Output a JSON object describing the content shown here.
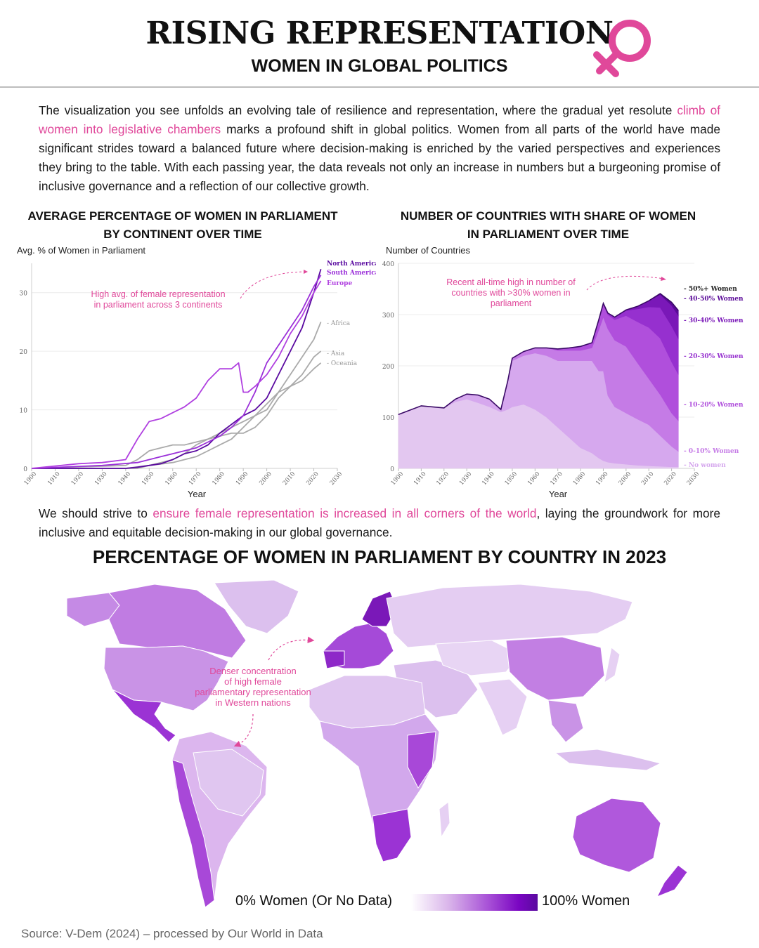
{
  "header": {
    "title": "RISING REPRESENTATION",
    "subtitle": "WOMEN IN GLOBAL POLITICS",
    "accent_color": "#e0489a"
  },
  "intro": {
    "part1": "The visualization you see unfolds an evolving tale of resilience and representation, where the gradual yet resolute ",
    "highlight": "climb of women into legislative chambers",
    "part2": " marks a profound shift in global politics. Women from all parts of the world have made significant strides toward a balanced future where decision-making is enriched by the varied perspectives and experiences they bring to the table. With each passing year, the data reveals not only an increase in numbers but a burgeoning promise of inclusive governance and a reflection of our collective growth."
  },
  "outro": {
    "part1": "We should strive to ",
    "highlight": "ensure female representation is increased in all corners of the world",
    "part2": ", laying the groundwork for more inclusive and equitable decision-making in our global governance."
  },
  "map": {
    "title": "PERCENTAGE OF WOMEN IN PARLIAMENT BY COUNTRY IN 2023",
    "annotation": [
      "Denser concentration",
      "of high female",
      "parliamentary representation",
      "in Western nations"
    ],
    "legend_low": "0% Women (Or No Data)",
    "legend_high": "100% Women"
  },
  "source": "Source: V-Dem (2024) – processed by Our World in Data",
  "chart_data": [
    {
      "type": "line",
      "title": "AVERAGE PERCENTAGE OF WOMEN IN PARLIAMENT BY CONTINENT OVER TIME",
      "ylabel": "Avg. % of Women in Parliament",
      "xlabel": "Year",
      "xlim": [
        1900,
        2030
      ],
      "ylim": [
        0,
        35
      ],
      "xticks": [
        "1900",
        "1910",
        "1920",
        "1930",
        "1940",
        "1950",
        "1960",
        "1970",
        "1980",
        "1990",
        "2000",
        "2010",
        "2020",
        "2030"
      ],
      "yticks": [
        "0",
        "10",
        "20",
        "30"
      ],
      "annotation": [
        "High avg. of female representation",
        "in parliament across 3 continents"
      ],
      "series": [
        {
          "name": "North America",
          "color": "#5a0aa0",
          "x": [
            1900,
            1940,
            1945,
            1950,
            1955,
            1960,
            1965,
            1970,
            1975,
            1980,
            1985,
            1990,
            1995,
            2000,
            2005,
            2010,
            2015,
            2020,
            2023
          ],
          "y": [
            0,
            0,
            0.2,
            0.5,
            0.8,
            1.5,
            2.5,
            3,
            4,
            6,
            7.5,
            9,
            10,
            12,
            16,
            20,
            24,
            30,
            34
          ]
        },
        {
          "name": "South America",
          "color": "#9b30d9",
          "x": [
            1900,
            1930,
            1945,
            1950,
            1955,
            1960,
            1965,
            1970,
            1975,
            1980,
            1985,
            1990,
            1995,
            2000,
            2005,
            2010,
            2015,
            2020,
            2023
          ],
          "y": [
            0,
            0.5,
            1,
            1.5,
            2,
            2.5,
            3,
            3.5,
            4.5,
            5.5,
            7,
            9,
            13,
            18,
            21,
            24,
            27,
            31,
            33
          ]
        },
        {
          "name": "Europe",
          "color": "#b040e0",
          "x": [
            1900,
            1920,
            1930,
            1940,
            1945,
            1950,
            1955,
            1960,
            1965,
            1970,
            1975,
            1980,
            1985,
            1988,
            1990,
            1992,
            1995,
            2000,
            2005,
            2010,
            2015,
            2020,
            2023
          ],
          "y": [
            0,
            0.8,
            1,
            1.5,
            5,
            8,
            8.5,
            9.5,
            10.5,
            12,
            15,
            17,
            17,
            18,
            13,
            13,
            14,
            16,
            19,
            23,
            26,
            30,
            32
          ]
        },
        {
          "name": "Africa",
          "color": "#aaaaaa",
          "x": [
            1900,
            1940,
            1950,
            1955,
            1960,
            1965,
            1970,
            1975,
            1980,
            1985,
            1990,
            1995,
            2000,
            2005,
            2010,
            2015,
            2020,
            2023
          ],
          "y": [
            0,
            0,
            0.5,
            1,
            1.5,
            2.5,
            4,
            5,
            6,
            7,
            8,
            9,
            10,
            13,
            16,
            19,
            22,
            25
          ]
        },
        {
          "name": "Asia",
          "color": "#aaaaaa",
          "x": [
            1900,
            1940,
            1945,
            1950,
            1955,
            1960,
            1965,
            1970,
            1975,
            1980,
            1985,
            1990,
            1995,
            2000,
            2005,
            2010,
            2015,
            2020,
            2023
          ],
          "y": [
            0,
            0.5,
            1.5,
            3,
            3.5,
            4,
            4,
            4.5,
            5,
            5.5,
            6,
            6,
            7,
            9,
            12,
            14,
            16,
            19,
            20
          ]
        },
        {
          "name": "Oceania",
          "color": "#aaaaaa",
          "x": [
            1900,
            1945,
            1950,
            1960,
            1965,
            1970,
            1975,
            1980,
            1985,
            1990,
            1995,
            2000,
            2005,
            2010,
            2015,
            2020,
            2023
          ],
          "y": [
            0,
            0,
            0.5,
            1,
            1.5,
            2,
            3,
            4,
            5,
            7,
            9,
            11,
            13,
            14,
            15,
            17,
            18
          ]
        }
      ]
    },
    {
      "type": "area",
      "title": "NUMBER OF COUNTRIES WITH SHARE OF WOMEN IN PARLIAMENT OVER TIME",
      "ylabel": "Number of Countries",
      "xlabel": "Year",
      "xlim": [
        1900,
        2030
      ],
      "ylim": [
        0,
        400
      ],
      "xticks": [
        "1900",
        "1910",
        "1920",
        "1930",
        "1940",
        "1950",
        "1960",
        "1970",
        "1980",
        "1990",
        "2000",
        "2010",
        "2020",
        "2030"
      ],
      "yticks": [
        "0",
        "100",
        "200",
        "300",
        "400"
      ],
      "annotation": [
        "Recent all-time high in number of",
        "countries with >30% women in",
        "parliament"
      ],
      "x": [
        1900,
        1910,
        1920,
        1925,
        1930,
        1935,
        1940,
        1945,
        1948,
        1950,
        1955,
        1960,
        1965,
        1970,
        1975,
        1980,
        1985,
        1988,
        1990,
        1992,
        1995,
        2000,
        2005,
        2010,
        2015,
        2020,
        2023
      ],
      "series": [
        {
          "name": "No women",
          "color": "#e3c7f0",
          "values": [
            105,
            122,
            118,
            130,
            135,
            128,
            120,
            110,
            115,
            120,
            125,
            115,
            100,
            80,
            60,
            40,
            30,
            20,
            15,
            12,
            10,
            8,
            6,
            5,
            4,
            3,
            3
          ]
        },
        {
          "name": "0-10% Women",
          "color": "#d6a8ee",
          "values": [
            0,
            0,
            0,
            5,
            10,
            15,
            15,
            5,
            55,
            90,
            95,
            110,
            120,
            130,
            150,
            170,
            180,
            170,
            175,
            130,
            110,
            100,
            90,
            80,
            60,
            40,
            30
          ]
        },
        {
          "name": "10-20% Women",
          "color": "#c57be6",
          "values": [
            0,
            0,
            0,
            0,
            0,
            0,
            0,
            0,
            0,
            5,
            8,
            10,
            15,
            20,
            20,
            20,
            25,
            80,
            105,
            130,
            130,
            130,
            110,
            90,
            80,
            65,
            60
          ]
        },
        {
          "name": "20-30% Women",
          "color": "#b04fdc",
          "values": [
            0,
            0,
            0,
            0,
            0,
            0,
            0,
            0,
            0,
            0,
            0,
            0,
            0,
            3,
            5,
            8,
            10,
            20,
            25,
            28,
            40,
            60,
            80,
            100,
            110,
            100,
            90
          ]
        },
        {
          "name": "30-40% Women",
          "color": "#9630cf",
          "values": [
            0,
            0,
            0,
            0,
            0,
            0,
            0,
            0,
            0,
            0,
            0,
            0,
            0,
            0,
            0,
            0,
            0,
            0,
            2,
            3,
            5,
            10,
            25,
            40,
            60,
            70,
            70
          ]
        },
        {
          "name": "40-50% Women",
          "color": "#7a18b8",
          "values": [
            0,
            0,
            0,
            0,
            0,
            0,
            0,
            0,
            0,
            0,
            0,
            0,
            0,
            0,
            0,
            0,
            0,
            0,
            0,
            0,
            0,
            1,
            5,
            12,
            25,
            40,
            45
          ]
        },
        {
          "name": "50%+ Women",
          "color": "#5a0a98",
          "values": [
            0,
            0,
            0,
            0,
            0,
            0,
            0,
            0,
            0,
            0,
            0,
            0,
            0,
            0,
            0,
            0,
            0,
            0,
            0,
            0,
            0,
            0,
            0,
            0,
            2,
            6,
            10
          ]
        }
      ]
    }
  ]
}
